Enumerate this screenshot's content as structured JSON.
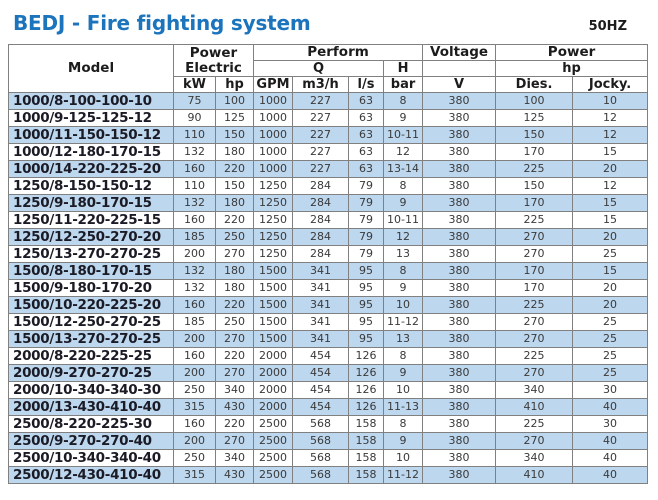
{
  "page": {
    "title": "BEDJ - Fire fighting system",
    "frequency": "50HZ"
  },
  "colors": {
    "title_blue": "#1b74bc",
    "row_stripe_blue": "#bdd7ee",
    "table_border_gray": "#808080"
  },
  "table": {
    "header": {
      "model": "Model",
      "power_electric": "Power Electric",
      "perform": "Perform",
      "q": "Q",
      "h": "H",
      "voltage": "Voltage",
      "voltage_spacer": "",
      "power": "Power",
      "hp_group": "hp",
      "kw": "kW",
      "hp": "hp",
      "gpm": "GPM",
      "m3h": "m3/h",
      "ls": "l/s",
      "bar": "bar",
      "v": "V",
      "dies": "Dies.",
      "jocky": "Jocky."
    },
    "rows": [
      [
        "1000/8-100-100-10",
        "75",
        "100",
        "1000",
        "227",
        "63",
        "8",
        "380",
        "100",
        "10"
      ],
      [
        "1000/9-125-125-12",
        "90",
        "125",
        "1000",
        "227",
        "63",
        "9",
        "380",
        "125",
        "12"
      ],
      [
        "1000/11-150-150-12",
        "110",
        "150",
        "1000",
        "227",
        "63",
        "10-11",
        "380",
        "150",
        "12"
      ],
      [
        "1000/12-180-170-15",
        "132",
        "180",
        "1000",
        "227",
        "63",
        "12",
        "380",
        "170",
        "15"
      ],
      [
        "1000/14-220-225-20",
        "160",
        "220",
        "1000",
        "227",
        "63",
        "13-14",
        "380",
        "225",
        "20"
      ],
      [
        "1250/8-150-150-12",
        "110",
        "150",
        "1250",
        "284",
        "79",
        "8",
        "380",
        "150",
        "12"
      ],
      [
        "1250/9-180-170-15",
        "132",
        "180",
        "1250",
        "284",
        "79",
        "9",
        "380",
        "170",
        "15"
      ],
      [
        "1250/11-220-225-15",
        "160",
        "220",
        "1250",
        "284",
        "79",
        "10-11",
        "380",
        "225",
        "15"
      ],
      [
        "1250/12-250-270-20",
        "185",
        "250",
        "1250",
        "284",
        "79",
        "12",
        "380",
        "270",
        "20"
      ],
      [
        "1250/13-270-270-25",
        "200",
        "270",
        "1250",
        "284",
        "79",
        "13",
        "380",
        "270",
        "25"
      ],
      [
        "1500/8-180-170-15",
        "132",
        "180",
        "1500",
        "341",
        "95",
        "8",
        "380",
        "170",
        "15"
      ],
      [
        "1500/9-180-170-20",
        "132",
        "180",
        "1500",
        "341",
        "95",
        "9",
        "380",
        "170",
        "20"
      ],
      [
        "1500/10-220-225-20",
        "160",
        "220",
        "1500",
        "341",
        "95",
        "10",
        "380",
        "225",
        "20"
      ],
      [
        "1500/12-250-270-25",
        "185",
        "250",
        "1500",
        "341",
        "95",
        "11-12",
        "380",
        "270",
        "25"
      ],
      [
        "1500/13-270-270-25",
        "200",
        "270",
        "1500",
        "341",
        "95",
        "13",
        "380",
        "270",
        "25"
      ],
      [
        "2000/8-220-225-25",
        "160",
        "220",
        "2000",
        "454",
        "126",
        "8",
        "380",
        "225",
        "25"
      ],
      [
        "2000/9-270-270-25",
        "200",
        "270",
        "2000",
        "454",
        "126",
        "9",
        "380",
        "270",
        "25"
      ],
      [
        "2000/10-340-340-30",
        "250",
        "340",
        "2000",
        "454",
        "126",
        "10",
        "380",
        "340",
        "30"
      ],
      [
        "2000/13-430-410-40",
        "315",
        "430",
        "2000",
        "454",
        "126",
        "11-13",
        "380",
        "410",
        "40"
      ],
      [
        "2500/8-220-225-30",
        "160",
        "220",
        "2500",
        "568",
        "158",
        "8",
        "380",
        "225",
        "30"
      ],
      [
        "2500/9-270-270-40",
        "200",
        "270",
        "2500",
        "568",
        "158",
        "9",
        "380",
        "270",
        "40"
      ],
      [
        "2500/10-340-340-40",
        "250",
        "340",
        "2500",
        "568",
        "158",
        "10",
        "380",
        "340",
        "40"
      ],
      [
        "2500/12-430-410-40",
        "315",
        "430",
        "2500",
        "568",
        "158",
        "11-12",
        "380",
        "410",
        "40"
      ]
    ]
  }
}
